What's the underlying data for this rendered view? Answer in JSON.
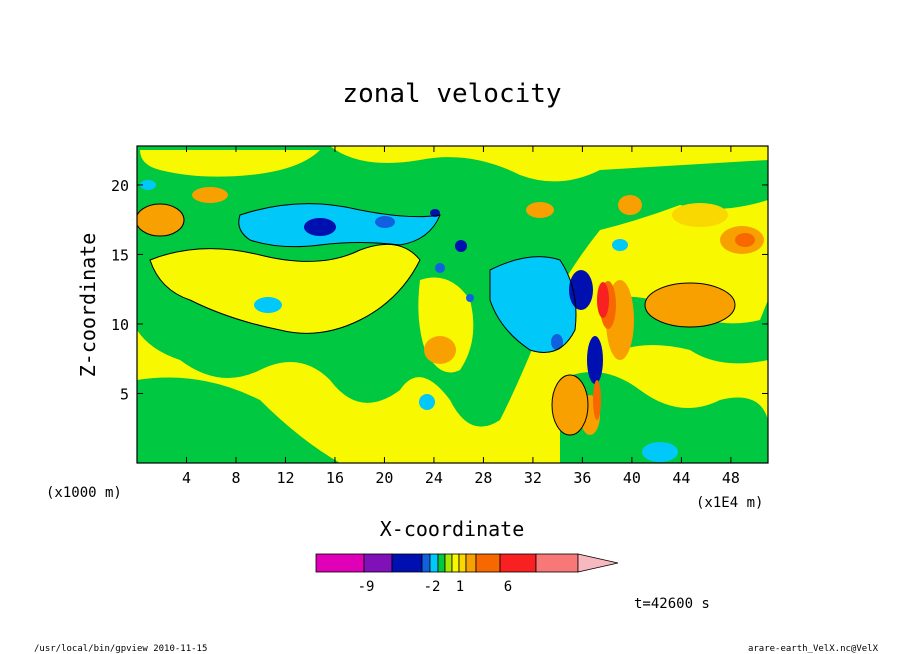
{
  "chart_data": {
    "type": "heatmap",
    "title": "zonal velocity",
    "xlabel": "X-coordinate",
    "ylabel": "Z-coordinate",
    "x_unit_left": "(x1000 m)",
    "x_unit_right": "(x1E4 m)",
    "x_ticks": [
      "4",
      "8",
      "12",
      "16",
      "20",
      "24",
      "28",
      "32",
      "36",
      "40",
      "44",
      "48"
    ],
    "x_tick_values": [
      4,
      8,
      12,
      16,
      20,
      24,
      28,
      32,
      36,
      40,
      44,
      48
    ],
    "y_ticks": [
      "5",
      "10",
      "15",
      "20"
    ],
    "y_tick_values": [
      5,
      10,
      15,
      20
    ],
    "xlim": [
      0,
      51
    ],
    "ylim": [
      0,
      22.8
    ],
    "colorbar": {
      "labels": [
        "-9",
        "-2",
        "1",
        "6"
      ],
      "colors": [
        "#e000b8",
        "#8010b8",
        "#0010b0",
        "#1060e0",
        "#00c8f8",
        "#00c840",
        "#a8e800",
        "#f8f800",
        "#f8d800",
        "#f8a000",
        "#f86800",
        "#f82020",
        "#f87878",
        "#f8b8c0"
      ]
    },
    "time_label": "t=42600 s",
    "footer_left": "/usr/local/bin/gpview   2010-11-15",
    "footer_right": "arare-earth_VelX.nc@VelX"
  }
}
